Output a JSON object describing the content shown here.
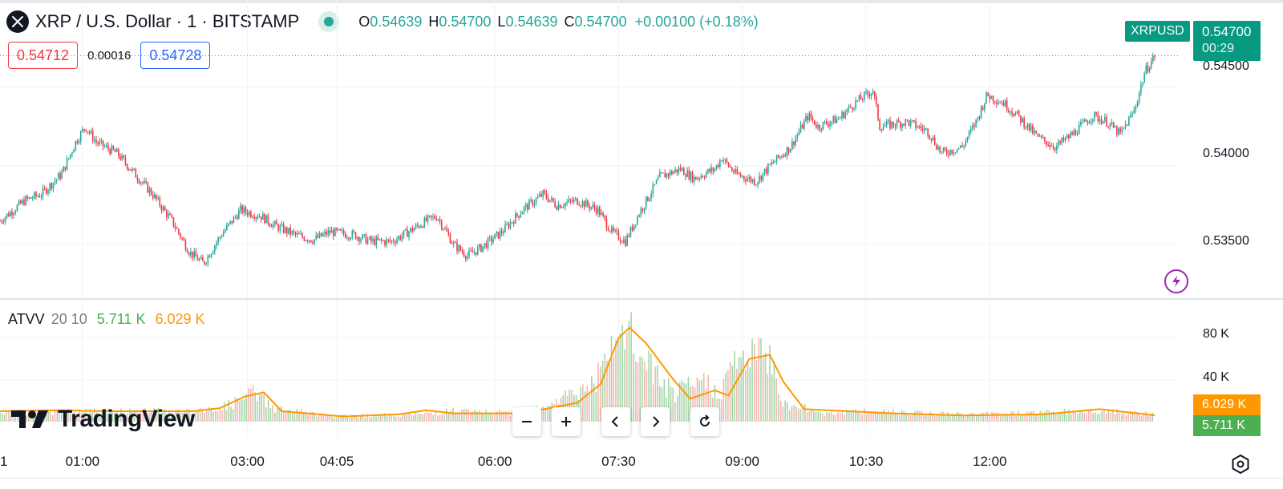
{
  "header": {
    "symbol_title": "XRP / U.S. Dollar · 1 · BITSTAMP",
    "ohlc": [
      {
        "key": "O",
        "value": "0.54639"
      },
      {
        "key": "H",
        "value": "0.54700"
      },
      {
        "key": "L",
        "value": "0.54639"
      },
      {
        "key": "C",
        "value": "0.54700"
      }
    ],
    "change": "+0.00100 (+0.18%)",
    "bid": "0.54712",
    "spread": "0.00016",
    "ask": "0.54728"
  },
  "price_tags": {
    "symbol": "XRPUSD",
    "last_price": "0.54700",
    "countdown": "00:29"
  },
  "indicator": {
    "name": "ATVV",
    "params": "20 10",
    "value1": "5.711 K",
    "value2": "6.029 K"
  },
  "branding": {
    "logo_text": "TradingView"
  },
  "icons": {
    "symbol": "xrp-logo-icon",
    "status": "market-open-dot-icon",
    "lightning": "lightning-icon",
    "zoom_out": "minus-icon",
    "zoom_in": "plus-icon",
    "scroll_left": "chevron-left-icon",
    "scroll_right": "chevron-right-icon",
    "reset": "reset-icon",
    "settings": "settings-icon"
  },
  "colors": {
    "up": "#26a69a",
    "down": "#f23645",
    "volume_ma": "#ff9800",
    "volume_green": "#4caf50",
    "accent": "#2962ff",
    "signal": "#9c27b0"
  },
  "chart_data": [
    {
      "type": "candlestick",
      "title": "XRP / U.S. Dollar · 1 · BITSTAMP",
      "ylim": [
        0.5322,
        0.5485
      ],
      "price_ticks": [
        "0.54500",
        "0.54000",
        "0.53500"
      ],
      "price_tick_values": [
        0.545,
        0.54,
        0.535
      ],
      "x_ticks": [
        "01:00",
        "03:00",
        "04:05",
        "06:00",
        "07:30",
        "09:00",
        "10:30",
        "12:00"
      ],
      "x_tick_minutes": [
        60,
        180,
        245,
        360,
        450,
        540,
        630,
        720
      ],
      "x_edge_label": "1",
      "time_range_minutes": [
        0,
        840
      ],
      "path_points": [
        [
          0,
          0.5365
        ],
        [
          18,
          0.5378
        ],
        [
          30,
          0.5382
        ],
        [
          45,
          0.5395
        ],
        [
          55,
          0.5415
        ],
        [
          62,
          0.5425
        ],
        [
          70,
          0.5415
        ],
        [
          85,
          0.5408
        ],
        [
          95,
          0.5398
        ],
        [
          110,
          0.5383
        ],
        [
          125,
          0.5365
        ],
        [
          138,
          0.5345
        ],
        [
          148,
          0.5338
        ],
        [
          160,
          0.5355
        ],
        [
          175,
          0.5372
        ],
        [
          190,
          0.5368
        ],
        [
          200,
          0.5362
        ],
        [
          215,
          0.5356
        ],
        [
          228,
          0.5353
        ],
        [
          240,
          0.5358
        ],
        [
          258,
          0.5356
        ],
        [
          270,
          0.5352
        ],
        [
          285,
          0.5352
        ],
        [
          295,
          0.5357
        ],
        [
          310,
          0.5365
        ],
        [
          318,
          0.5368
        ],
        [
          330,
          0.535
        ],
        [
          340,
          0.5343
        ],
        [
          350,
          0.5348
        ],
        [
          365,
          0.5358
        ],
        [
          380,
          0.5372
        ],
        [
          395,
          0.5382
        ],
        [
          405,
          0.5375
        ],
        [
          420,
          0.5378
        ],
        [
          435,
          0.5372
        ],
        [
          445,
          0.5358
        ],
        [
          455,
          0.5352
        ],
        [
          465,
          0.537
        ],
        [
          480,
          0.5393
        ],
        [
          495,
          0.5398
        ],
        [
          505,
          0.5392
        ],
        [
          520,
          0.5398
        ],
        [
          525,
          0.5405
        ],
        [
          535,
          0.5395
        ],
        [
          550,
          0.539
        ],
        [
          560,
          0.54
        ],
        [
          575,
          0.5412
        ],
        [
          588,
          0.5432
        ],
        [
          595,
          0.5425
        ],
        [
          610,
          0.543
        ],
        [
          622,
          0.544
        ],
        [
          635,
          0.5448
        ],
        [
          640,
          0.5425
        ],
        [
          660,
          0.5428
        ],
        [
          675,
          0.5422
        ],
        [
          685,
          0.5408
        ],
        [
          700,
          0.5412
        ],
        [
          710,
          0.5428
        ],
        [
          718,
          0.5445
        ],
        [
          730,
          0.544
        ],
        [
          740,
          0.5432
        ],
        [
          755,
          0.5418
        ],
        [
          768,
          0.5412
        ],
        [
          780,
          0.542
        ],
        [
          795,
          0.5432
        ],
        [
          805,
          0.5428
        ],
        [
          815,
          0.542
        ],
        [
          825,
          0.5435
        ],
        [
          833,
          0.546
        ],
        [
          840,
          0.547
        ]
      ],
      "candles_sampled": true
    },
    {
      "type": "bar+line",
      "title": "ATVV 20 10",
      "ylim": [
        0,
        112
      ],
      "y_ticks": [
        "80 K",
        "40 K"
      ],
      "y_tick_values": [
        80,
        40
      ],
      "units": "K",
      "volume_points": [
        [
          0,
          10
        ],
        [
          150,
          12
        ],
        [
          170,
          20
        ],
        [
          185,
          33
        ],
        [
          200,
          15
        ],
        [
          240,
          6
        ],
        [
          300,
          8
        ],
        [
          330,
          12
        ],
        [
          380,
          9
        ],
        [
          430,
          40
        ],
        [
          448,
          80
        ],
        [
          455,
          105
        ],
        [
          465,
          75
        ],
        [
          490,
          30
        ],
        [
          510,
          45
        ],
        [
          525,
          35
        ],
        [
          535,
          70
        ],
        [
          560,
          75
        ],
        [
          570,
          20
        ],
        [
          600,
          10
        ],
        [
          650,
          12
        ],
        [
          700,
          8
        ],
        [
          750,
          10
        ],
        [
          800,
          12
        ],
        [
          840,
          8
        ]
      ],
      "ma_points": [
        [
          0,
          10
        ],
        [
          40,
          11
        ],
        [
          80,
          10
        ],
        [
          140,
          10
        ],
        [
          160,
          13
        ],
        [
          178,
          24
        ],
        [
          192,
          28
        ],
        [
          205,
          10
        ],
        [
          250,
          5
        ],
        [
          290,
          7
        ],
        [
          310,
          11
        ],
        [
          330,
          8
        ],
        [
          380,
          8
        ],
        [
          420,
          18
        ],
        [
          437,
          36
        ],
        [
          450,
          80
        ],
        [
          458,
          90
        ],
        [
          470,
          75
        ],
        [
          490,
          40
        ],
        [
          502,
          22
        ],
        [
          520,
          30
        ],
        [
          530,
          25
        ],
        [
          545,
          60
        ],
        [
          560,
          64
        ],
        [
          570,
          38
        ],
        [
          585,
          12
        ],
        [
          650,
          8
        ],
        [
          700,
          6
        ],
        [
          760,
          7
        ],
        [
          800,
          12
        ],
        [
          840,
          6.029
        ]
      ],
      "last_values": [
        "6.029 K",
        "5.711 K"
      ]
    }
  ]
}
